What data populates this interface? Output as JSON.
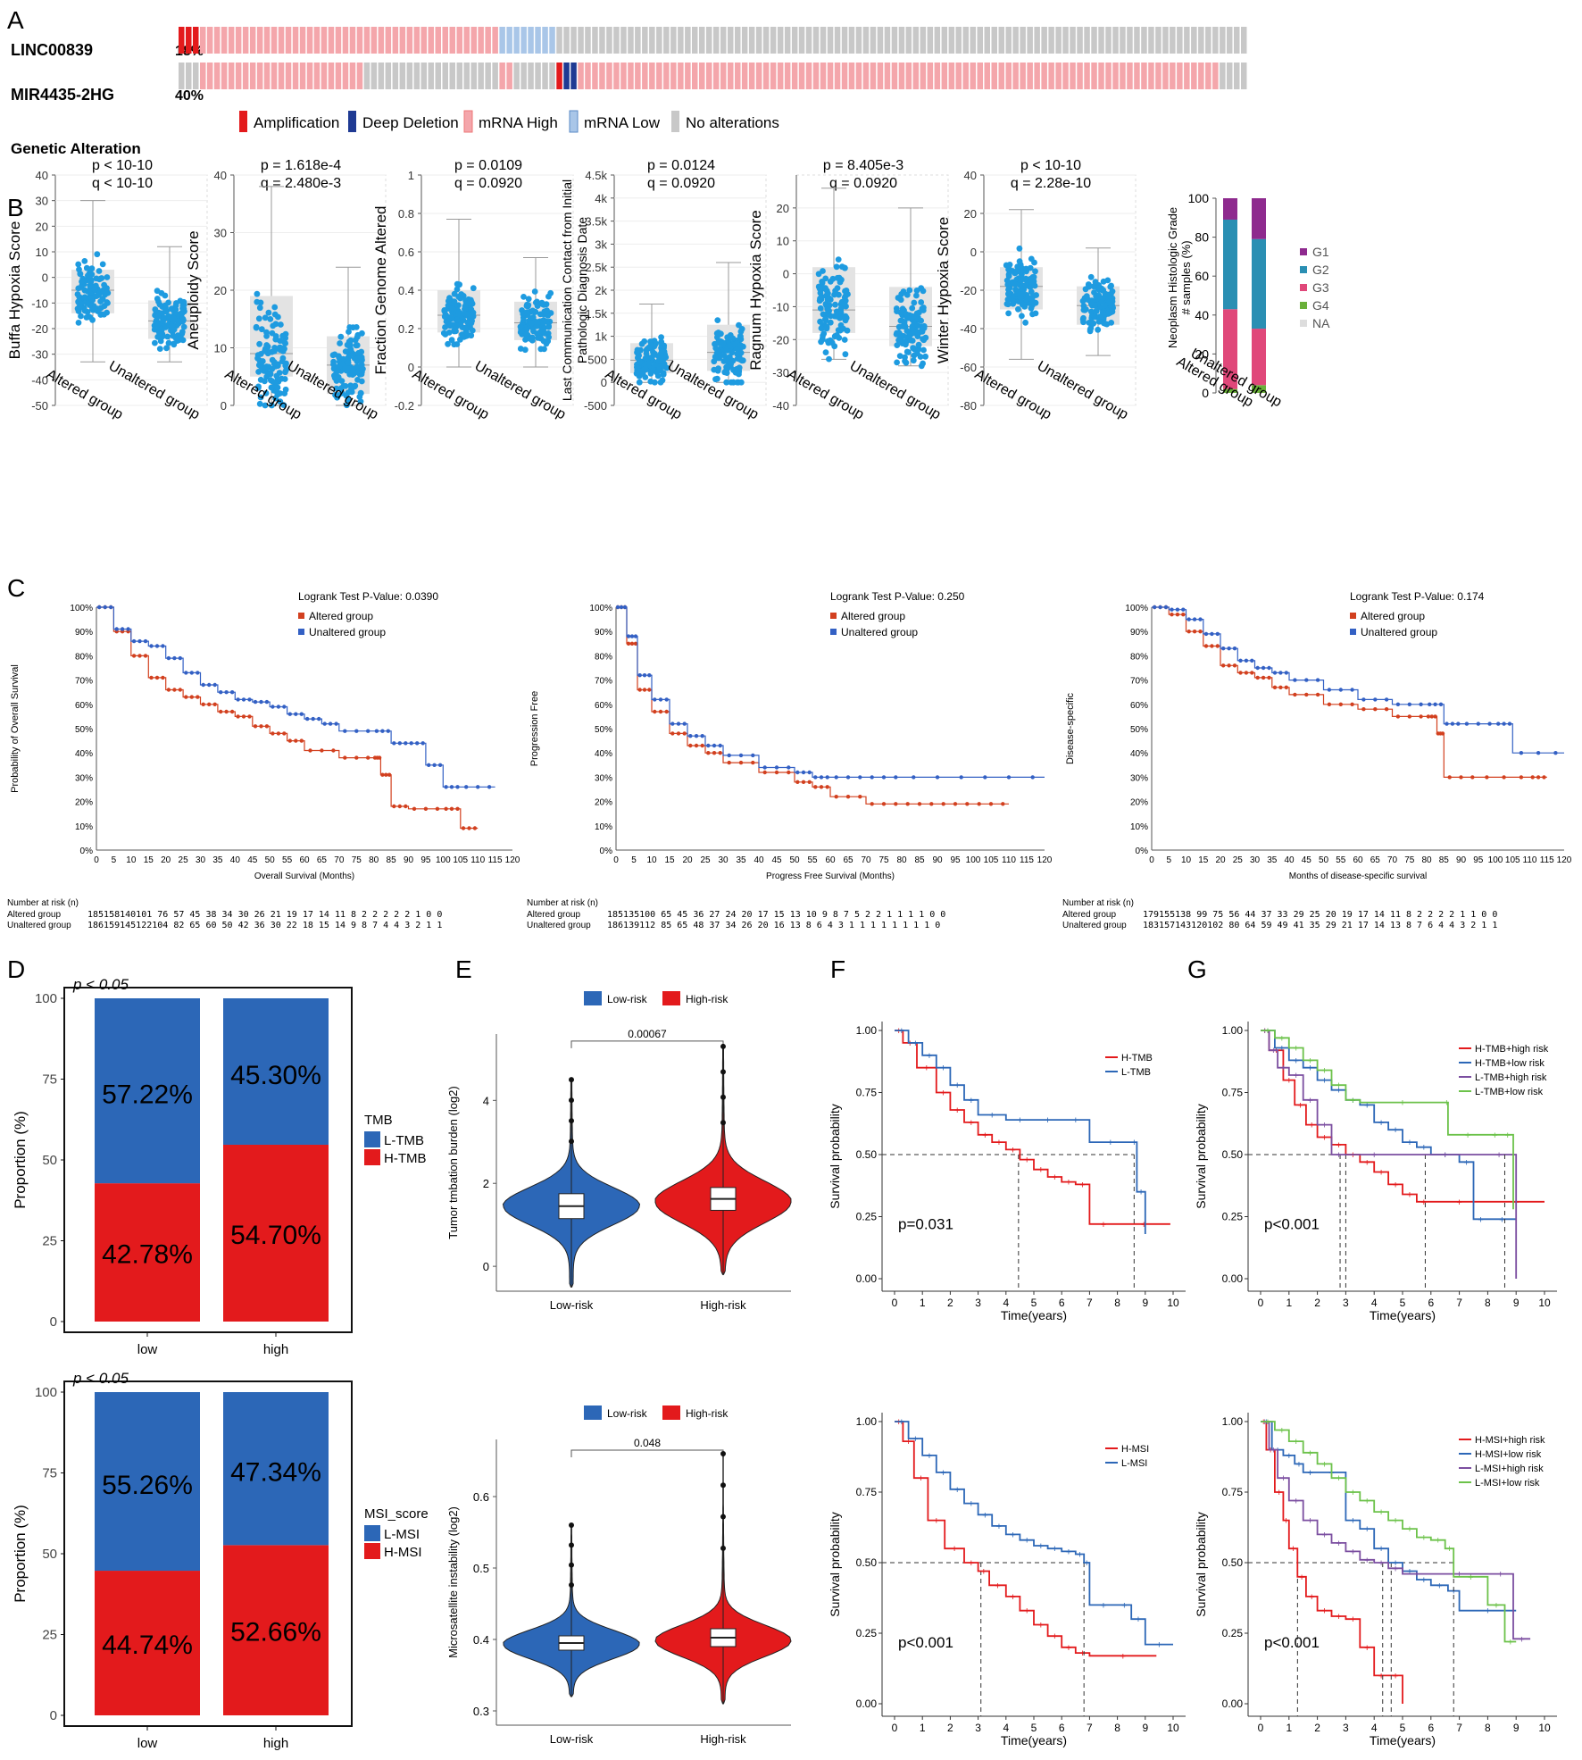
{
  "panels": {
    "A": "A",
    "B": "B",
    "C": "C",
    "D": "D",
    "E": "E",
    "F": "F",
    "G": "G"
  },
  "colors": {
    "amp": "#e31a1c",
    "del": "#1f3a93",
    "mrna_high": "#f4a6ab",
    "mrna_low": "#a9c6e8",
    "none": "#c8c8c8",
    "box_point": "#1e9be0",
    "altered": "#d2401f",
    "unaltered": "#3360c4",
    "tmb_red": "#e31a1c",
    "tmb_blue": "#2c67b7",
    "green": "#6cc24a",
    "purple": "#7b4ea0"
  },
  "oncoprint": {
    "genes": [
      {
        "name": "LINC00839",
        "pct": "18%"
      },
      {
        "name": "MIR4435-2HG",
        "pct": "40%"
      }
    ],
    "legend_title": "Genetic Alteration",
    "legend": [
      "Amplification",
      "Deep Deletion",
      "mRNA High",
      "mRNA Low",
      "No alterations"
    ]
  },
  "chart_data": [
    {
      "type": "scatter",
      "id": "B1",
      "ylabel": "Buffa Hypoxia Score",
      "p": "p < 10-10",
      "q": "q < 10-10",
      "ylim": [
        -50,
        40
      ],
      "ticks": [
        -50,
        -40,
        -30,
        -20,
        -10,
        0,
        10,
        20,
        30,
        40
      ],
      "categories": [
        "Altered group",
        "Unaltered group"
      ],
      "box": [
        {
          "q1": -14,
          "median": -5,
          "q3": 3,
          "lo": -33,
          "hi": 30
        },
        {
          "q1": -24,
          "median": -17,
          "q3": -9,
          "lo": -33,
          "hi": 12
        }
      ]
    },
    {
      "type": "scatter",
      "id": "B2",
      "ylabel": "Aneuploidy Score",
      "p": "p = 1.618e-4",
      "q": "q = 2.480e-3",
      "ylim": [
        0,
        40
      ],
      "ticks": [
        0,
        10,
        20,
        30,
        40
      ],
      "categories": [
        "Altered group",
        "Unaltered group"
      ],
      "box": [
        {
          "q1": 5,
          "median": 9,
          "q3": 19,
          "lo": 0,
          "hi": 38
        },
        {
          "q1": 2,
          "median": 7,
          "q3": 12,
          "lo": 0,
          "hi": 24
        }
      ]
    },
    {
      "type": "scatter",
      "id": "B3",
      "ylabel": "Fraction Genome Altered",
      "p": "p = 0.0109",
      "q": "q = 0.0920",
      "ylim": [
        -0.2,
        1
      ],
      "ticks": [
        -0.2,
        0,
        0.2,
        0.4,
        0.6,
        0.8,
        1
      ],
      "categories": [
        "Altered group",
        "Unaltered group"
      ],
      "box": [
        {
          "q1": 0.18,
          "median": 0.27,
          "q3": 0.4,
          "lo": 0,
          "hi": 0.77
        },
        {
          "q1": 0.14,
          "median": 0.23,
          "q3": 0.34,
          "lo": 0,
          "hi": 0.57
        }
      ]
    },
    {
      "type": "scatter",
      "id": "B4",
      "ylabel": "Last Communication Contact from Initial Pathologic Diagnosis Date",
      "p": "p = 0.0124",
      "q": "q = 0.0920",
      "ylim": [
        -500,
        4500
      ],
      "ticks": [
        -500,
        0,
        500,
        "1k",
        "1.5k",
        "2k",
        "2.5k",
        "3k",
        "3.5k",
        "4k",
        "4.5k"
      ],
      "categories": [
        "Altered group",
        "Unaltered group"
      ],
      "box": [
        {
          "q1": 200,
          "median": 480,
          "q3": 850,
          "lo": 0,
          "hi": 1700
        },
        {
          "q1": 250,
          "median": 650,
          "q3": 1250,
          "lo": 0,
          "hi": 2600
        }
      ]
    },
    {
      "type": "scatter",
      "id": "B5",
      "ylabel": "Ragnum Hypoxia Score",
      "p": "p = 8.405e-3",
      "q": "q = 0.0920",
      "ylim": [
        -40,
        30
      ],
      "ticks": [
        -40,
        -30,
        -20,
        -10,
        0,
        10,
        20
      ],
      "categories": [
        "Altered group",
        "Unaltered group"
      ],
      "box": [
        {
          "q1": -18,
          "median": -11,
          "q3": 2,
          "lo": -26,
          "hi": 26
        },
        {
          "q1": -22,
          "median": -16,
          "q3": -4,
          "lo": -28,
          "hi": 20
        }
      ]
    },
    {
      "type": "scatter",
      "id": "B6",
      "ylabel": "Winter Hypoxia Score",
      "p": "p < 10-10",
      "q": "q = 2.28e-10",
      "ylim": [
        -80,
        40
      ],
      "ticks": [
        -80,
        -60,
        -40,
        -20,
        0,
        20,
        40
      ],
      "categories": [
        "Altered group",
        "Unaltered group"
      ],
      "box": [
        {
          "q1": -30,
          "median": -18,
          "q3": -8,
          "lo": -56,
          "hi": 22
        },
        {
          "q1": -38,
          "median": -28,
          "q3": -18,
          "lo": -54,
          "hi": 2
        }
      ]
    },
    {
      "type": "bar",
      "id": "B7",
      "ylabel": "Neoplasm Histologic Grade",
      "ylabel2": "# samples (%)",
      "ylim": [
        0,
        100
      ],
      "ticks": [
        0,
        20,
        40,
        60,
        80,
        100
      ],
      "categories": [
        "Altered group",
        "Unaltered group"
      ],
      "series": [
        {
          "name": "G4",
          "values": [
            2,
            4
          ]
        },
        {
          "name": "G3",
          "values": [
            41,
            29
          ]
        },
        {
          "name": "G2",
          "values": [
            46,
            46
          ]
        },
        {
          "name": "G1",
          "values": [
            11,
            21
          ]
        },
        {
          "name": "NA",
          "values": [
            0,
            0
          ]
        }
      ],
      "legend": [
        "G1",
        "G2",
        "G3",
        "G4",
        "NA"
      ]
    },
    {
      "type": "line",
      "id": "C1",
      "ylabel": "Probability of Overall Survival",
      "xlabel": "Overall Survival (Months)",
      "logrank": "Logrank Test P-Value: 0.0390",
      "legend": [
        "Altered group",
        "Unaltered group"
      ],
      "yticks": [
        "0%",
        "10%",
        "20%",
        "30%",
        "40%",
        "50%",
        "60%",
        "70%",
        "80%",
        "90%",
        "100%"
      ],
      "xticks": [
        0,
        5,
        10,
        15,
        20,
        25,
        30,
        35,
        40,
        45,
        50,
        55,
        60,
        65,
        70,
        75,
        80,
        85,
        90,
        95,
        100,
        105,
        110,
        115,
        120
      ],
      "series": [
        {
          "name": "Altered group",
          "x": [
            0,
            5,
            10,
            15,
            20,
            25,
            30,
            35,
            40,
            45,
            50,
            55,
            60,
            70,
            80,
            82,
            85,
            90,
            100,
            105,
            110
          ],
          "y": [
            100,
            90,
            80,
            71,
            66,
            63,
            60,
            57,
            55,
            51,
            48,
            45,
            41,
            38,
            38,
            31,
            18,
            17,
            17,
            9,
            9
          ]
        },
        {
          "name": "Unaltered group",
          "x": [
            0,
            5,
            10,
            15,
            20,
            25,
            30,
            35,
            40,
            45,
            50,
            55,
            60,
            65,
            70,
            80,
            85,
            90,
            95,
            100,
            105,
            115
          ],
          "y": [
            100,
            91,
            86,
            84,
            79,
            73,
            68,
            65,
            62,
            61,
            59,
            56,
            54,
            52,
            49,
            49,
            44,
            44,
            35,
            26,
            26,
            26
          ]
        }
      ],
      "risk_title": "Number at risk (n)",
      "risk_rows": [
        {
          "label": "Altered group",
          "values": "185158140101 76  57  45  38  34  30  26  21  19  17  14  11  8   2   2   2   2   2   1   0   0"
        },
        {
          "label": "Unaltered group",
          "values": "186159145122104 82  65  60  50  42  36  30  22  18  15  14  9   8   7   4   4   3   2   1   1"
        }
      ]
    },
    {
      "type": "line",
      "id": "C2",
      "ylabel": "Progression Free",
      "xlabel": "Progress Free Survival (Months)",
      "logrank": "Logrank Test P-Value: 0.250",
      "legend": [
        "Altered group",
        "Unaltered group"
      ],
      "yticks": [
        "0%",
        "10%",
        "20%",
        "30%",
        "40%",
        "50%",
        "60%",
        "70%",
        "80%",
        "90%",
        "100%"
      ],
      "xticks": [
        0,
        5,
        10,
        15,
        20,
        25,
        30,
        35,
        40,
        45,
        50,
        55,
        60,
        65,
        70,
        75,
        80,
        85,
        90,
        95,
        100,
        105,
        110,
        115,
        120
      ],
      "series": [
        {
          "name": "Altered group",
          "x": [
            0,
            3,
            6,
            10,
            15,
            20,
            25,
            30,
            40,
            50,
            55,
            60,
            70,
            80,
            90,
            100,
            110
          ],
          "y": [
            100,
            85,
            66,
            57,
            48,
            43,
            40,
            36,
            32,
            28,
            26,
            22,
            19,
            19,
            19,
            19,
            19
          ]
        },
        {
          "name": "Unaltered group",
          "x": [
            0,
            3,
            6,
            10,
            15,
            20,
            25,
            30,
            40,
            50,
            55,
            60,
            70,
            80,
            100,
            120
          ],
          "y": [
            100,
            88,
            72,
            62,
            52,
            47,
            43,
            39,
            34,
            32,
            30,
            30,
            30,
            30,
            30,
            30
          ]
        }
      ],
      "risk_title": "Number at risk (n)",
      "risk_rows": [
        {
          "label": "Altered group",
          "values": "185135100 65  45  36  27  24  20  17  15  13  10  9   8   7   5   2   2   1   1   1   1   0   0"
        },
        {
          "label": "Unaltered group",
          "values": "186139112 85  65  48  37  34  26  20  16  13  8   6   4   3   1   1   1   1   1   1   1   1   0"
        }
      ]
    },
    {
      "type": "line",
      "id": "C3",
      "ylabel": "Disease-specific",
      "xlabel": "Months of disease-specific survival",
      "logrank": "Logrank Test P-Value: 0.174",
      "legend": [
        "Altered group",
        "Unaltered group"
      ],
      "yticks": [
        "0%",
        "10%",
        "20%",
        "30%",
        "40%",
        "50%",
        "60%",
        "70%",
        "80%",
        "90%",
        "100%"
      ],
      "xticks": [
        0,
        5,
        10,
        15,
        20,
        25,
        30,
        35,
        40,
        45,
        50,
        55,
        60,
        65,
        70,
        75,
        80,
        85,
        90,
        95,
        100,
        105,
        110,
        115,
        120
      ],
      "series": [
        {
          "name": "Altered group",
          "x": [
            0,
            5,
            10,
            15,
            20,
            25,
            30,
            35,
            40,
            50,
            60,
            70,
            80,
            83,
            85,
            95,
            110,
            115
          ],
          "y": [
            100,
            97,
            90,
            84,
            76,
            73,
            71,
            67,
            64,
            60,
            58,
            55,
            55,
            48,
            30,
            30,
            30,
            30
          ]
        },
        {
          "name": "Unaltered group",
          "x": [
            0,
            5,
            10,
            15,
            20,
            25,
            30,
            35,
            40,
            50,
            60,
            70,
            80,
            85,
            90,
            100,
            105,
            120
          ],
          "y": [
            100,
            99,
            95,
            89,
            83,
            78,
            75,
            73,
            70,
            66,
            62,
            60,
            60,
            52,
            52,
            52,
            40,
            40
          ]
        }
      ],
      "risk_title": "Number at risk (n)",
      "risk_rows": [
        {
          "label": "Altered group",
          "values": "179155138 99  75  56  44  37  33  29  25  20  19  17  14  11  8   2   2   2   2   1   1   0   0"
        },
        {
          "label": "Unaltered group",
          "values": "183157143120102 80  64  59  49  41  35  29  21  17  14  13  8   7   6   4   4   3   2   1   1"
        }
      ]
    },
    {
      "type": "bar",
      "id": "D1",
      "ylabel": "Proportion (%)",
      "p": "p < 0.05",
      "categories": [
        "low",
        "high"
      ],
      "series": [
        {
          "name": "H-TMB",
          "values": [
            42.78,
            54.7
          ]
        },
        {
          "name": "L-TMB",
          "values": [
            57.22,
            45.3
          ]
        }
      ],
      "labels_top": [
        "57.22%",
        "45.30%"
      ],
      "labels_bottom": [
        "42.78%",
        "54.70%"
      ],
      "legend_title": "TMB",
      "legend": [
        "L-TMB",
        "H-TMB"
      ],
      "yticks": [
        0,
        25,
        50,
        75,
        100
      ]
    },
    {
      "type": "bar",
      "id": "D2",
      "ylabel": "Proportion (%)",
      "p": "p < 0.05",
      "categories": [
        "low",
        "high"
      ],
      "series": [
        {
          "name": "H-MSI",
          "values": [
            44.74,
            52.66
          ]
        },
        {
          "name": "L-MSI",
          "values": [
            55.26,
            47.34
          ]
        }
      ],
      "labels_top": [
        "55.26%",
        "47.34%"
      ],
      "labels_bottom": [
        "44.74%",
        "52.66%"
      ],
      "legend_title": "MSI_score",
      "legend": [
        "L-MSI",
        "H-MSI"
      ],
      "yticks": [
        0,
        25,
        50,
        75,
        100
      ]
    },
    {
      "type": "violin",
      "id": "E1",
      "ylabel": "Tumor tmbation burden (log2)",
      "categories": [
        "Low-risk",
        "High-risk"
      ],
      "legend": [
        "Low-risk",
        "High-risk"
      ],
      "pvalue": "0.00067",
      "yticks": [
        0,
        2,
        4
      ],
      "ylim": [
        -0.6,
        5.6
      ]
    },
    {
      "type": "violin",
      "id": "E2",
      "ylabel": "Microsatellite instability (log2)",
      "categories": [
        "Low-risk",
        "High-risk"
      ],
      "legend": [
        "Low-risk",
        "High-risk"
      ],
      "pvalue": "0.048",
      "yticks": [
        0.3,
        0.4,
        0.5,
        0.6
      ],
      "ylim": [
        0.28,
        0.68
      ]
    },
    {
      "type": "line",
      "id": "F1",
      "ylabel": "Survival probability",
      "xlabel": "Time(years)",
      "pval": "p=0.031",
      "legend": [
        "H-TMB",
        "L-TMB"
      ],
      "xticks": [
        0,
        1,
        2,
        3,
        4,
        5,
        6,
        7,
        8,
        9,
        10
      ],
      "yticks": [
        "0.00",
        "0.25",
        "0.50",
        "0.75",
        "1.00"
      ]
    },
    {
      "type": "line",
      "id": "F2",
      "ylabel": "Survival probability",
      "xlabel": "Time(years)",
      "pval": "p<0.001",
      "legend": [
        "H-MSI",
        "L-MSI"
      ],
      "xticks": [
        0,
        1,
        2,
        3,
        4,
        5,
        6,
        7,
        8,
        9,
        10
      ],
      "yticks": [
        "0.00",
        "0.25",
        "0.50",
        "0.75",
        "1.00"
      ]
    },
    {
      "type": "line",
      "id": "G1",
      "ylabel": "Survival probability",
      "xlabel": "Time(years)",
      "pval": "p<0.001",
      "legend": [
        "H-TMB+high risk",
        "H-TMB+low risk",
        "L-TMB+high risk",
        "L-TMB+low risk"
      ],
      "xticks": [
        0,
        1,
        2,
        3,
        4,
        5,
        6,
        7,
        8,
        9,
        10
      ],
      "yticks": [
        "0.00",
        "0.25",
        "0.50",
        "0.75",
        "1.00"
      ]
    },
    {
      "type": "line",
      "id": "G2",
      "ylabel": "Survival probability",
      "xlabel": "Time(years)",
      "pval": "p<0.001",
      "legend": [
        "H-MSI+high risk",
        "H-MSI+low risk",
        "L-MSI+high risk",
        "L-MSI+low risk"
      ],
      "xticks": [
        0,
        1,
        2,
        3,
        4,
        5,
        6,
        7,
        8,
        9,
        10
      ],
      "yticks": [
        "0.00",
        "0.25",
        "0.50",
        "0.75",
        "1.00"
      ]
    }
  ]
}
